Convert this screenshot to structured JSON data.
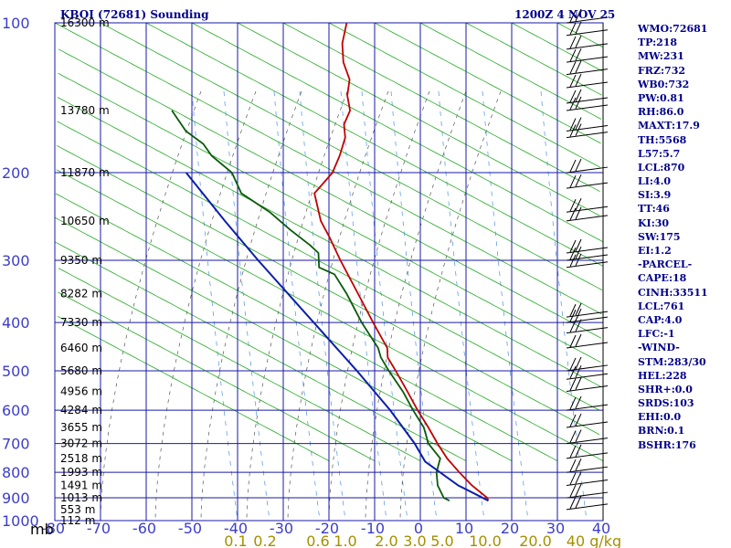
{
  "header": {
    "station_title": "KBOI (72681) Sounding",
    "valid_time": "1200Z  4 NOV 25"
  },
  "colors": {
    "grid": "#1a1aa8",
    "temperature": "#c00000",
    "dewpoint": "#0a5a0a",
    "parcel": "#0b1fa8",
    "dry_adiabat": "#22aa22",
    "moist_adiabat": "#555555",
    "mixing_ratio": "#4a90e2",
    "axis_text": "#3d3dcc",
    "mixing_ratio_text": "#a58f00"
  },
  "indices": [
    "WMO:72681",
    "TP:218",
    "MW:231",
    "FRZ:732",
    "WB0:732",
    "PW:0.81",
    "RH:86.0",
    "MAXT:17.9",
    "TH:5568",
    "L57:5.7",
    "LCL:870",
    "LI:4.0",
    "SI:3.9",
    "TT:46",
    "KI:30",
    "SW:175",
    "EI:1.2",
    "-PARCEL-",
    "CAPE:18",
    "CINH:33511",
    "LCL:761",
    "CAP:4.0",
    "LFC:-1",
    "-WIND-",
    "STM:283/30",
    "HEL:228",
    "SHR+:0.0",
    "SRDS:103",
    "EHI:0.0",
    "BRN:0.1",
    "BSHR:176"
  ],
  "chart_data": {
    "type": "line",
    "diagram": "skew-T log-P",
    "title": "KBOI (72681) Sounding",
    "subtitle": "1200Z  4 NOV 25",
    "y_axis": {
      "scale": "log",
      "unit_label": "mb",
      "range_mb": [
        1000,
        100
      ],
      "pressure_ticks": [
        100,
        200,
        300,
        400,
        500,
        600,
        700,
        800,
        900,
        1000
      ]
    },
    "x_axis": {
      "range_c": [
        -80,
        40
      ],
      "temperature_ticks": [
        -80,
        -70,
        -60,
        -50,
        -40,
        -30,
        -20,
        -10,
        0,
        10,
        20,
        30,
        40
      ],
      "skewed": true
    },
    "height_labels": [
      {
        "p": 100,
        "text": "16300 m"
      },
      {
        "p": 150,
        "text": "13780 m"
      },
      {
        "p": 200,
        "text": "11870 m"
      },
      {
        "p": 250,
        "text": "10650 m"
      },
      {
        "p": 300,
        "text": "9350 m"
      },
      {
        "p": 350,
        "text": "8282 m"
      },
      {
        "p": 400,
        "text": "7330 m"
      },
      {
        "p": 450,
        "text": "6460 m"
      },
      {
        "p": 500,
        "text": "5680 m"
      },
      {
        "p": 550,
        "text": "4956 m"
      },
      {
        "p": 600,
        "text": "4284 m"
      },
      {
        "p": 650,
        "text": "3655 m"
      },
      {
        "p": 700,
        "text": "3072 m"
      },
      {
        "p": 750,
        "text": "2518 m"
      },
      {
        "p": 800,
        "text": "1993 m"
      },
      {
        "p": 850,
        "text": "1491 m"
      },
      {
        "p": 900,
        "text": "1013 m"
      },
      {
        "p": 950,
        "text": "553 m"
      },
      {
        "p": 1000,
        "text": "112 m"
      }
    ],
    "mixing_ratio_labels": [
      "0.1",
      "0.2",
      "0.6",
      "1.0",
      "2.0",
      "3.0",
      "5.0",
      "10.0",
      "20.0",
      "40 g/kg"
    ],
    "series": [
      {
        "key": "temperature",
        "points": [
          {
            "p": 912,
            "t": 13.0
          },
          {
            "p": 900,
            "t": 12.5
          },
          {
            "p": 850,
            "t": 8.0
          },
          {
            "p": 800,
            "t": 4.0
          },
          {
            "p": 750,
            "t": 0.0
          },
          {
            "p": 700,
            "t": -3.5
          },
          {
            "p": 650,
            "t": -7.0
          },
          {
            "p": 600,
            "t": -11.0
          },
          {
            "p": 550,
            "t": -15.0
          },
          {
            "p": 500,
            "t": -19.5
          },
          {
            "p": 470,
            "t": -22.5
          },
          {
            "p": 450,
            "t": -23.5
          },
          {
            "p": 400,
            "t": -29.0
          },
          {
            "p": 350,
            "t": -35.0
          },
          {
            "p": 300,
            "t": -42.0
          },
          {
            "p": 270,
            "t": -46.5
          },
          {
            "p": 250,
            "t": -50.0
          },
          {
            "p": 220,
            "t": -54.0
          },
          {
            "p": 210,
            "t": -53.0
          },
          {
            "p": 200,
            "t": -52.0
          },
          {
            "p": 185,
            "t": -52.0
          },
          {
            "p": 170,
            "t": -52.5
          },
          {
            "p": 160,
            "t": -54.0
          },
          {
            "p": 150,
            "t": -54.0
          },
          {
            "p": 140,
            "t": -56.0
          },
          {
            "p": 130,
            "t": -57.0
          },
          {
            "p": 120,
            "t": -60.0
          },
          {
            "p": 110,
            "t": -62.0
          },
          {
            "p": 100,
            "t": -63.0
          }
        ]
      },
      {
        "key": "dewpoint",
        "points": [
          {
            "p": 912,
            "t": 4.5
          },
          {
            "p": 900,
            "t": 3.0
          },
          {
            "p": 850,
            "t": 0.5
          },
          {
            "p": 800,
            "t": -1.0
          },
          {
            "p": 750,
            "t": -1.5
          },
          {
            "p": 700,
            "t": -5.5
          },
          {
            "p": 650,
            "t": -8.0
          },
          {
            "p": 600,
            "t": -12.0
          },
          {
            "p": 550,
            "t": -16.0
          },
          {
            "p": 500,
            "t": -21.0
          },
          {
            "p": 470,
            "t": -24.0
          },
          {
            "p": 450,
            "t": -25.5
          },
          {
            "p": 400,
            "t": -31.5
          },
          {
            "p": 350,
            "t": -37.5
          },
          {
            "p": 320,
            "t": -42.0
          },
          {
            "p": 310,
            "t": -46.0
          },
          {
            "p": 290,
            "t": -47.5
          },
          {
            "p": 280,
            "t": -50.0
          },
          {
            "p": 260,
            "t": -56.0
          },
          {
            "p": 240,
            "t": -62.0
          },
          {
            "p": 220,
            "t": -70.0
          },
          {
            "p": 200,
            "t": -74.0
          },
          {
            "p": 185,
            "t": -80.0
          },
          {
            "p": 175,
            "t": -83.0
          },
          {
            "p": 165,
            "t": -88.0
          },
          {
            "p": 150,
            "t": -93.0
          }
        ]
      },
      {
        "key": "parcel",
        "points": [
          {
            "p": 912,
            "t": 13.0
          },
          {
            "p": 850,
            "t": 5.0
          },
          {
            "p": 761,
            "t": -4.5
          },
          {
            "p": 700,
            "t": -8.5
          },
          {
            "p": 600,
            "t": -17.0
          },
          {
            "p": 500,
            "t": -28.0
          },
          {
            "p": 400,
            "t": -42.0
          },
          {
            "p": 300,
            "t": -60.0
          },
          {
            "p": 250,
            "t": -71.0
          },
          {
            "p": 200,
            "t": -84.0
          }
        ]
      }
    ],
    "wind_barbs": {
      "levels_mb": [
        100,
        106,
        113,
        120,
        127,
        135,
        145,
        150,
        165,
        170,
        200,
        215,
        240,
        250,
        290,
        300,
        310,
        390,
        400,
        420,
        450,
        500,
        520,
        550,
        600,
        650,
        700,
        750,
        800,
        850,
        900,
        950
      ],
      "direction_deg": 280,
      "typical_speed_kt": 50
    }
  }
}
